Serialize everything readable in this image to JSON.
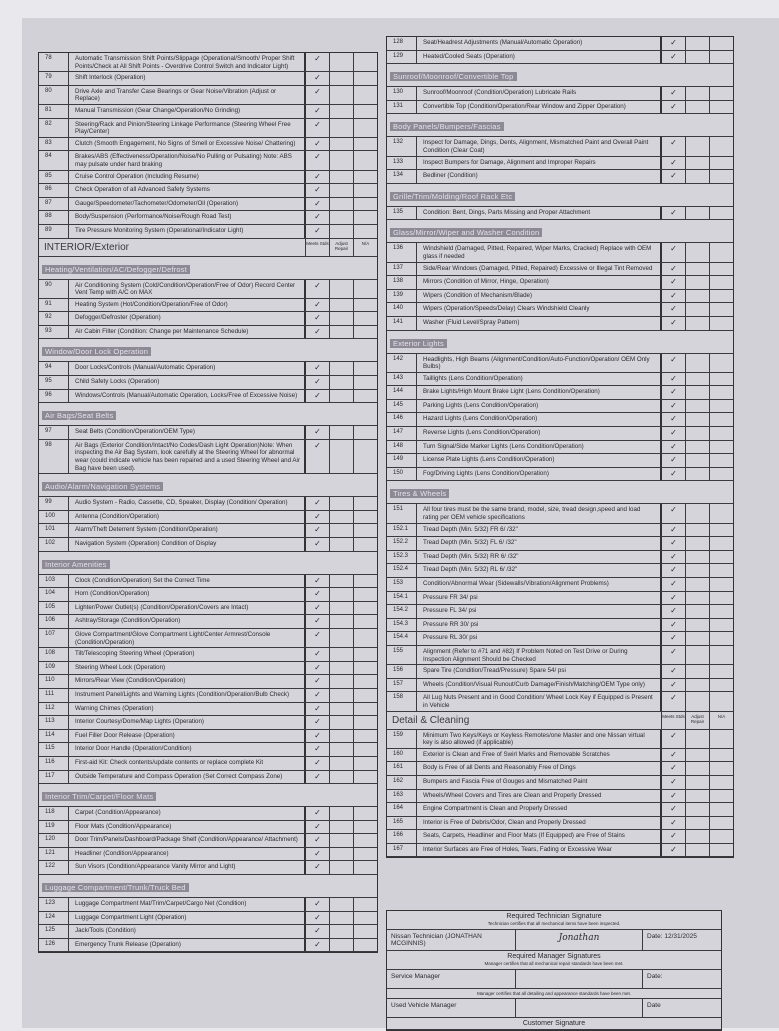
{
  "check_mark": "✓",
  "left": {
    "rows": [
      {
        "t": "item",
        "num": "78",
        "text": "Automatic Transmission Shift Points/Slippage (Operational/Smooth/ Proper Shift Points/Check at All Shift Points - Overdrive Control Switch and Indicator Light)",
        "meets": true
      },
      {
        "t": "item",
        "num": "79",
        "text": "Shift Interlock (Operation)",
        "meets": true
      },
      {
        "t": "item",
        "num": "80",
        "text": "Drive Axle and Transfer Case Bearings or Gear Noise/Vibration (Adjust or Replace)",
        "meets": true
      },
      {
        "t": "item",
        "num": "81",
        "text": "Manual Transmission (Gear Change/Operation/No Grinding)",
        "meets": true
      },
      {
        "t": "item",
        "num": "82",
        "text": "Steering/Rack and Pinion/Steering Linkage Performance (Steering Wheel Free Play/Center)",
        "meets": true
      },
      {
        "t": "item",
        "num": "83",
        "text": "Clutch (Smooth Engagement, No Signs of Smell or Excessive Noise/ Chattering)",
        "meets": true
      },
      {
        "t": "item",
        "num": "84",
        "text": "Brakes/ABS (Effectiveness/Operation/Noise/No Pulling or Pulsating) Note: ABS may pulsate under hard braking",
        "meets": true
      },
      {
        "t": "item",
        "num": "85",
        "text": "Cruise Control Operation (Including Resume)",
        "meets": true
      },
      {
        "t": "item",
        "num": "86",
        "text": "Check Operation of all Advanced Safety Systems",
        "meets": true
      },
      {
        "t": "item",
        "num": "87",
        "text": "Gauge/Speedometer/Tachometer/Odometer/Oil (Operation)",
        "meets": true
      },
      {
        "t": "item",
        "num": "88",
        "text": "Body/Suspension (Performance/Noise/Rough Road Test)",
        "meets": true
      },
      {
        "t": "item",
        "num": "89",
        "text": "Tire Pressure Monitoring System (Operational/Indicator Light)",
        "meets": true
      },
      {
        "t": "header",
        "title": "INTERIOR/Exterior",
        "c1": "Meets Stds",
        "c2": "Adjust Repair",
        "c3": "N/A"
      },
      {
        "t": "section",
        "title": "Heating/Ventilation/AC/Defogger/Defrost"
      },
      {
        "t": "item",
        "num": "90",
        "text": "Air Conditioning System (Cold/Condition/Operation/Free of Odor) Record Center Vent Temp with A/C on MAX",
        "meets": true
      },
      {
        "t": "item",
        "num": "91",
        "text": "Heating System (Hot/Condition/Operation/Free of Odor)",
        "meets": true
      },
      {
        "t": "item",
        "num": "92",
        "text": "Defogger/Defroster (Operation)",
        "meets": true
      },
      {
        "t": "item",
        "num": "93",
        "text": "Air Cabin Filter (Condition: Change per Maintenance Schedule)",
        "meets": true
      },
      {
        "t": "section",
        "title": "Window/Door Lock Operation"
      },
      {
        "t": "item",
        "num": "94",
        "text": "Door Locks/Controls (Manual/Automatic Operation)",
        "meets": true
      },
      {
        "t": "item",
        "num": "95",
        "text": "Child Safety Locks (Operation)",
        "meets": true
      },
      {
        "t": "item",
        "num": "96",
        "text": "Windows/Controls (Manual/Automatic Operation, Locks/Free of Excessive Noise)",
        "meets": true
      },
      {
        "t": "section",
        "title": "Air Bags/Seat Belts"
      },
      {
        "t": "item",
        "num": "97",
        "text": "Seat Belts (Condition/Operation/OEM Type)",
        "meets": true
      },
      {
        "t": "item",
        "num": "98",
        "text": "Air Bags (Exterior Condition/Intact/No Codes/Dash Light Operation)Note: When inspecting the Air Bag System, look carefully at the Steering Wheel for abnormal wear (could indicate vehicle has been repaired and a used Steering Wheel and Air Bag have been used).",
        "meets": true
      },
      {
        "t": "section",
        "title": "Audio/Alarm/Navigation Systems"
      },
      {
        "t": "item",
        "num": "99",
        "text": "Audio System - Radio, Cassette, CD, Speaker, Display (Condition/ Operation)",
        "meets": true
      },
      {
        "t": "item",
        "num": "100",
        "text": "Antenna (Condition/Operation)",
        "meets": true
      },
      {
        "t": "item",
        "num": "101",
        "text": "Alarm/Theft Deterrent System (Condition/Operation)",
        "meets": true
      },
      {
        "t": "item",
        "num": "102",
        "text": "Navigation System (Operation) Condition of Display",
        "meets": true
      },
      {
        "t": "section",
        "title": "Interior Amenities"
      },
      {
        "t": "item",
        "num": "103",
        "text": "Clock (Condition/Operation) Set the Correct Time",
        "meets": true
      },
      {
        "t": "item",
        "num": "104",
        "text": "Horn (Condition/Operation)",
        "meets": true
      },
      {
        "t": "item",
        "num": "105",
        "text": "Lighter/Power Outlet(s) (Condition/Operation/Covers are Intact)",
        "meets": true
      },
      {
        "t": "item",
        "num": "106",
        "text": "Ashtray/Storage (Condition/Operation)",
        "meets": true
      },
      {
        "t": "item",
        "num": "107",
        "text": "Glove Compartment/Glove Compartment Light/Center Armrest/Console (Condition/Operation)",
        "meets": true
      },
      {
        "t": "item",
        "num": "108",
        "text": "Tilt/Telescoping Steering Wheel (Operation)",
        "meets": true
      },
      {
        "t": "item",
        "num": "109",
        "text": "Steering Wheel Lock (Operation)",
        "meets": true
      },
      {
        "t": "item",
        "num": "110",
        "text": "Mirrors/Rear View (Condition/Operation)",
        "meets": true
      },
      {
        "t": "item",
        "num": "111",
        "text": "Instrument Panel/Lights and Warning Lights (Condition/Operation/Bulb Check)",
        "meets": true
      },
      {
        "t": "item",
        "num": "112",
        "text": "Warning Chimes (Operation)",
        "meets": true
      },
      {
        "t": "item",
        "num": "113",
        "text": "Interior Courtesy/Dome/Map Lights (Operation)",
        "meets": true
      },
      {
        "t": "item",
        "num": "114",
        "text": "Fuel Filler Door Release (Operation)",
        "meets": true
      },
      {
        "t": "item",
        "num": "115",
        "text": "Interior Door Handle (Operation/Condition)",
        "meets": true
      },
      {
        "t": "item",
        "num": "116",
        "text": "First-aid Kit: Check contents/update contents or replace complete Kit",
        "meets": true
      },
      {
        "t": "item",
        "num": "117",
        "text": "Outside Temperature and Compass Operation (Set Correct Compass Zone)",
        "meets": true
      },
      {
        "t": "section",
        "title": "Interior Trim/Carpet/Floor Mats"
      },
      {
        "t": "item",
        "num": "118",
        "text": "Carpet (Condition/Appearance)",
        "meets": true
      },
      {
        "t": "item",
        "num": "119",
        "text": "Floor Mats (Condition/Appearance)",
        "meets": true
      },
      {
        "t": "item",
        "num": "120",
        "text": "Door Trim/Panels/Dashboard/Package Shelf (Condition/Appearance/ Attachment)",
        "meets": true
      },
      {
        "t": "item",
        "num": "121",
        "text": "Headliner (Condition/Appearance)",
        "meets": true
      },
      {
        "t": "item",
        "num": "122",
        "text": "Sun Visors (Condition/Appearance Vanity Mirror and Light)",
        "meets": true
      },
      {
        "t": "section",
        "title": "Luggage Compartment/Trunk/Truck Bed"
      },
      {
        "t": "item",
        "num": "123",
        "text": "Luggage Compartment Mat/Trim/Carpet/Cargo Net (Condition)",
        "meets": true
      },
      {
        "t": "item",
        "num": "124",
        "text": "Luggage Compartment Light (Operation)",
        "meets": true
      },
      {
        "t": "item",
        "num": "125",
        "text": "Jack/Tools (Condition)",
        "meets": true
      },
      {
        "t": "item",
        "num": "126",
        "text": "Emergency Trunk Release (Operation)",
        "meets": true
      }
    ]
  },
  "right": {
    "rows": [
      {
        "t": "item",
        "num": "128",
        "text": "Seat/Headrest Adjustments (Manual/Automatic Operation)",
        "meets": true
      },
      {
        "t": "item",
        "num": "129",
        "text": "Heated/Cooled Seats (Operation)",
        "meets": true
      },
      {
        "t": "section",
        "title": "Sunroof/Moonroof/Convertible Top"
      },
      {
        "t": "item",
        "num": "130",
        "text": "Sunroof/Moonroof (Condition/Operation) Lubricate Rails",
        "meets": true
      },
      {
        "t": "item",
        "num": "131",
        "text": "Convertible Top (Condition/Operation/Rear Window and Zipper Operation)",
        "meets": true
      },
      {
        "t": "section",
        "title": "Body Panels/Bumpers/Fascias"
      },
      {
        "t": "item",
        "num": "132",
        "text": "Inspect for Damage, Dings, Dents, Alignment, Mismatched Paint and Overall Paint Condition (Clear Coat)",
        "meets": true
      },
      {
        "t": "item",
        "num": "133",
        "text": "Inspect Bumpers for Damage, Alignment and Improper Repairs",
        "meets": true
      },
      {
        "t": "item",
        "num": "134",
        "text": "Bedliner (Condition)",
        "meets": true
      },
      {
        "t": "section",
        "title": "Grille/Trim/Molding/Roof Rack Etc"
      },
      {
        "t": "item",
        "num": "135",
        "text": "Condition: Bent, Dings, Parts Missing and Proper Attachment",
        "meets": true
      },
      {
        "t": "section",
        "title": "Glass/Mirror/Wiper and Washer Condition"
      },
      {
        "t": "item",
        "num": "136",
        "text": "Windshield (Damaged, Pitted, Repaired, Wiper Marks, Cracked) Replace with OEM glass if needed",
        "meets": true
      },
      {
        "t": "item",
        "num": "137",
        "text": "Side/Rear Windows (Damaged, Pitted, Repaired) Excessive or Illegal Tint Removed",
        "meets": true
      },
      {
        "t": "item",
        "num": "138",
        "text": "Mirrors (Condition of Mirror, Hinge, Operation)",
        "meets": true
      },
      {
        "t": "item",
        "num": "139",
        "text": "Wipers (Condition of Mechanism/Blade)",
        "meets": true
      },
      {
        "t": "item",
        "num": "140",
        "text": "Wipers (Operation/Speeds/Delay) Clears Windshield Cleanly",
        "meets": true
      },
      {
        "t": "item",
        "num": "141",
        "text": "Washer (Fluid Level/Spray Pattern)",
        "meets": true
      },
      {
        "t": "section",
        "title": "Exterior Lights"
      },
      {
        "t": "item",
        "num": "142",
        "text": "Headlights, High Beams (Alignment/Condition/Auto-Function/Operation/ OEM Only Bulbs)",
        "meets": true
      },
      {
        "t": "item",
        "num": "143",
        "text": "Taillights (Lens Condition/Operation)",
        "meets": true
      },
      {
        "t": "item",
        "num": "144",
        "text": "Brake Lights/High Mount Brake Light (Lens Condition/Operation)",
        "meets": true
      },
      {
        "t": "item",
        "num": "145",
        "text": "Parking Lights (Lens Condition/Operation)",
        "meets": true
      },
      {
        "t": "item",
        "num": "146",
        "text": "Hazard Lights (Lens Condition/Operation)",
        "meets": true
      },
      {
        "t": "item",
        "num": "147",
        "text": "Reverse Lights (Lens Condition/Operation)",
        "meets": true
      },
      {
        "t": "item",
        "num": "148",
        "text": "Turn Signal/Side Marker Lights (Lens Condition/Operation)",
        "meets": true
      },
      {
        "t": "item",
        "num": "149",
        "text": "License Plate Lights (Lens Condition/Operation)",
        "meets": true
      },
      {
        "t": "item",
        "num": "150",
        "text": "Fog/Driving Lights (Lens Condition/Operation)",
        "meets": true
      },
      {
        "t": "section",
        "title": "Tires & Wheels"
      },
      {
        "t": "item",
        "num": "151",
        "text": "All four tires must be the same brand, model, size, tread design,speed and load rating per OEM vehicle specifications",
        "meets": true
      },
      {
        "t": "item",
        "num": "152.1",
        "text": "Tread Depth (Min. 5/32) FR 6/ /32\"",
        "meets": true
      },
      {
        "t": "item",
        "num": "152.2",
        "text": "Tread Depth (Min. 5/32) FL 6/ /32\"",
        "meets": true
      },
      {
        "t": "item",
        "num": "152.3",
        "text": "Tread Depth (Min. 5/32) RR 6/ /32\"",
        "meets": true
      },
      {
        "t": "item",
        "num": "152.4",
        "text": "Tread Depth (Min. 5/32) RL 6/ /32\"",
        "meets": true
      },
      {
        "t": "item",
        "num": "153",
        "text": "Condition/Abnormal Wear (Sidewalls/Vibration/Alignment Problems)",
        "meets": true
      },
      {
        "t": "item",
        "num": "154.1",
        "text": "Pressure FR 34/ psi",
        "meets": true
      },
      {
        "t": "item",
        "num": "154.2",
        "text": "Pressure FL 34/ psi",
        "meets": true
      },
      {
        "t": "item",
        "num": "154.3",
        "text": "Pressure RR 30/ psi",
        "meets": true
      },
      {
        "t": "item",
        "num": "154.4",
        "text": "Pressure RL 30/ psi",
        "meets": true
      },
      {
        "t": "item",
        "num": "155",
        "text": "Alignment (Refer to #71 and #82) If Problem Noted on Test Drive or During Inspection Alignment Should be Checked",
        "meets": true
      },
      {
        "t": "item",
        "num": "156",
        "text": "Spare Tire (Condition/Tread/Pressure) Spare 54/ psi",
        "meets": true
      },
      {
        "t": "item",
        "num": "157",
        "text": "Wheels (Condition/Visual Runout/Curb Damage/Finish/Matching/OEM Type only)",
        "meets": true
      },
      {
        "t": "item",
        "num": "158",
        "text": "All Lug Nuts Present and in Good Condition/ Wheel Lock Key if Equipped is Present in Vehicle",
        "meets": true
      },
      {
        "t": "header",
        "title": "Detail & Cleaning",
        "c1": "Meets Stds",
        "c2": "Adjust Repair",
        "c3": "N/A"
      },
      {
        "t": "item",
        "num": "159",
        "text": "Minimum Two Keys/Keys or Keyless Remotes/one Master and one Nissan virtual key is also allowed (if applicable)",
        "meets": true
      },
      {
        "t": "item",
        "num": "160",
        "text": "Exterior is Clean and Free of Swirl Marks and Removable Scratches",
        "meets": true
      },
      {
        "t": "item",
        "num": "161",
        "text": "Body is Free of all Dents and Reasonably Free of Dings",
        "meets": true
      },
      {
        "t": "item",
        "num": "162",
        "text": "Bumpers and Fascia Free of Gouges and Mismatched Paint",
        "meets": true
      },
      {
        "t": "item",
        "num": "163",
        "text": "Wheels/Wheel Covers and Tires are Clean and Properly Dressed",
        "meets": true
      },
      {
        "t": "item",
        "num": "164",
        "text": "Engine Compartment is Clean and Properly Dressed",
        "meets": true
      },
      {
        "t": "item",
        "num": "165",
        "text": "Interior is Free of Debris/Odor, Clean and Properly Dressed",
        "meets": true
      },
      {
        "t": "item",
        "num": "166",
        "text": "Seats, Carpets, Headliner and Floor Mats (If Equipped) are Free of Stains",
        "meets": true
      },
      {
        "t": "item",
        "num": "167",
        "text": "Interior Surfaces are Free of Holes, Tears, Fading or Excessive Wear",
        "meets": true
      }
    ]
  },
  "signatures": {
    "tech_title": "Required Technician Signature",
    "tech_note": "Technician certifies that all mechanical items have been inspected.",
    "tech_label": "Nissan Technician (JONATHAN MCGINNIS)",
    "tech_signature": "Jonathan",
    "tech_date": "Date: 12/31/2025",
    "mgr_title": "Required Manager Signatures",
    "mgr_note": "Manager certifies that all mechanical repair standards have been met.",
    "service_manager": "Service Manager",
    "service_date": "Date:",
    "detail_note": "Manager certifies that all detailing and appearance standards have been met.",
    "used_vehicle_manager": "Used Vehicle Manager",
    "used_date": "Date",
    "customer_title": "Customer Signature"
  }
}
